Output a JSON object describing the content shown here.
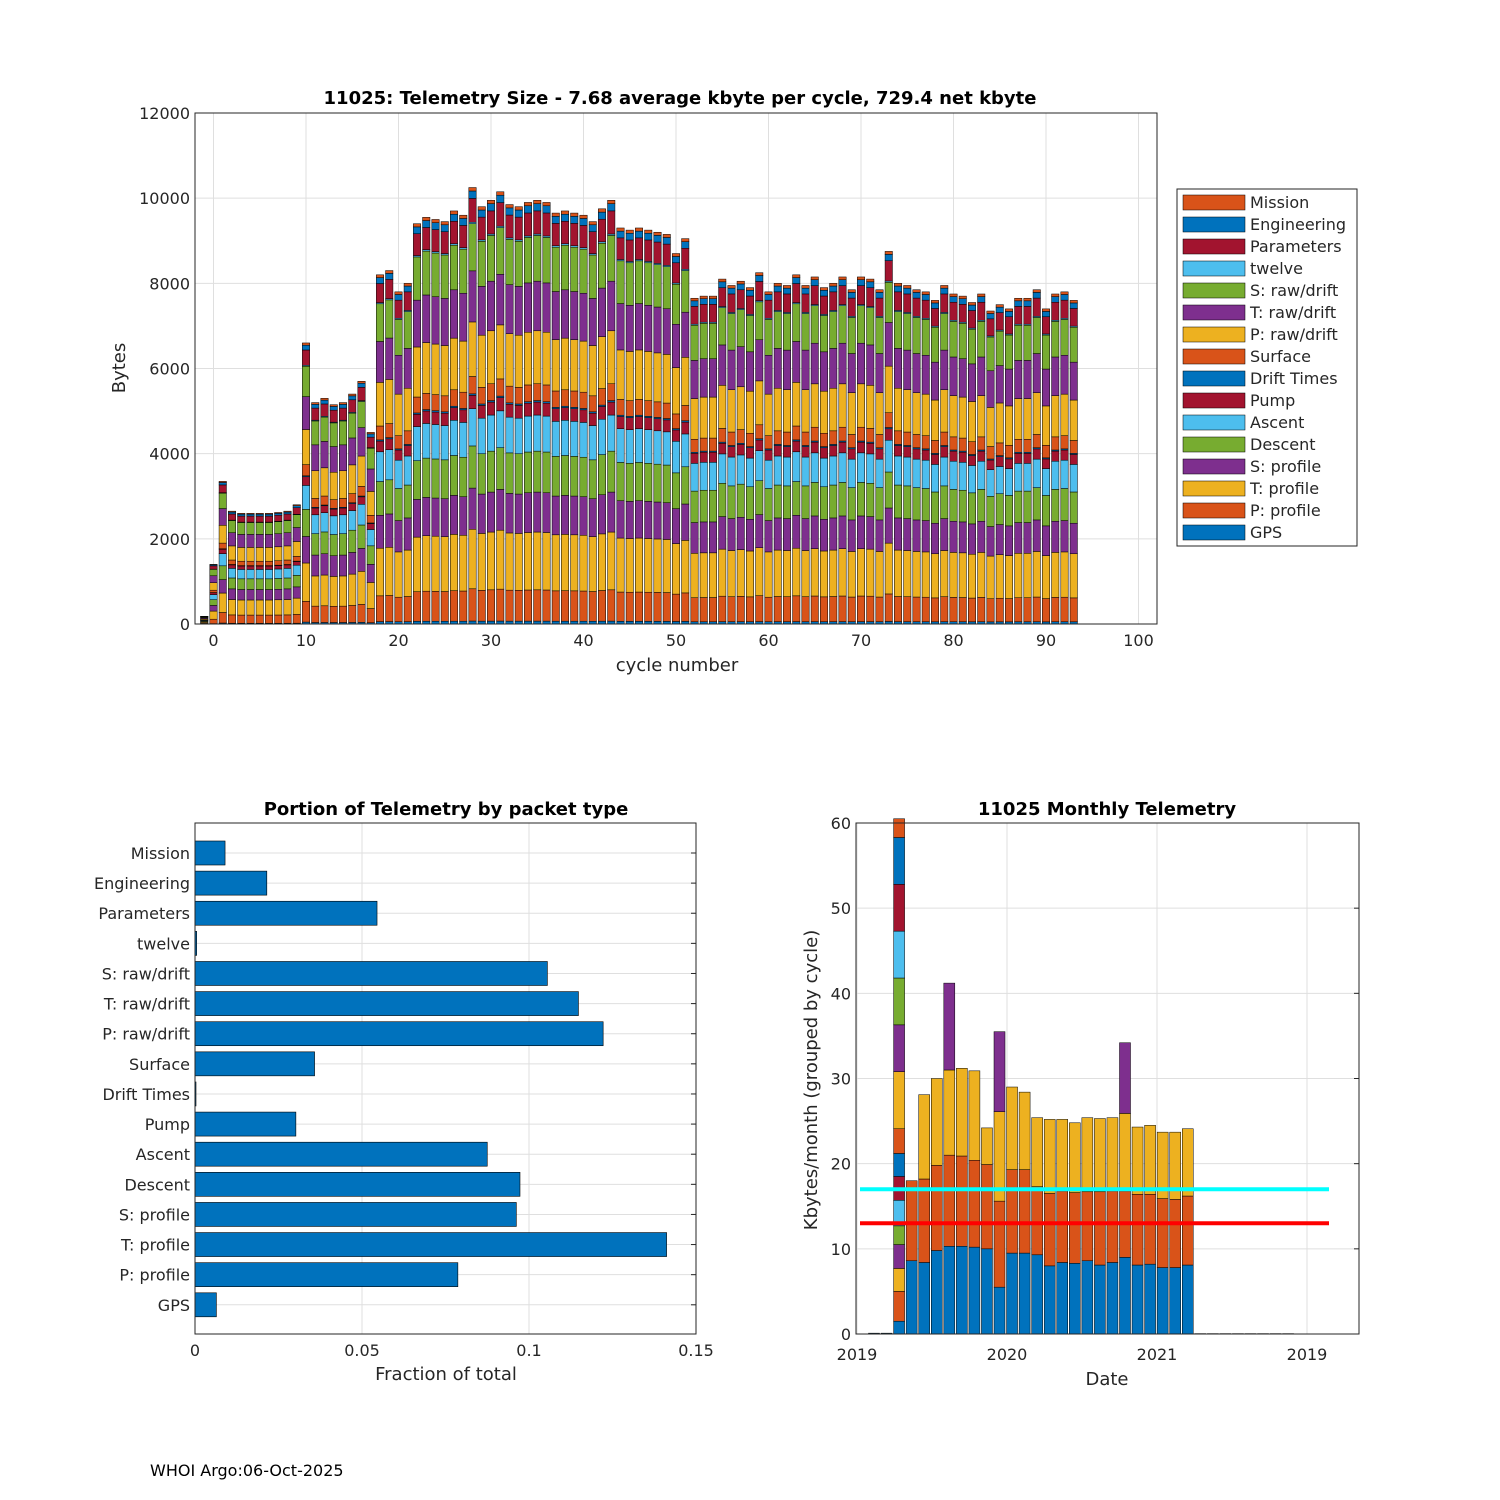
{
  "footer": "WHOI Argo:06-Oct-2025",
  "colors": {
    "GPS": "#0072BD",
    "P: profile": "#D95319",
    "T: profile": "#EDB120",
    "S: profile": "#7E2F8E",
    "Descent": "#77AC30",
    "Ascent": "#4DBEEE",
    "Pump": "#A2142F",
    "Drift Times": "#0072BD",
    "Surface": "#D95319",
    "P: raw/drift": "#EDB120",
    "T: raw/drift": "#7E2F8E",
    "S: raw/drift": "#77AC30",
    "twelve": "#4DBEEE",
    "Parameters": "#A2142F",
    "Engineering": "#0072BD",
    "Mission": "#D95319",
    "cyan_line": "#00FFFF",
    "red_line": "#FF0000",
    "grid": "#DFDFDF"
  },
  "chart_data": [
    {
      "type": "bar",
      "stacked": true,
      "title": "11025: Telemetry Size - 7.68 average kbyte per cycle,  729.4 net kbyte",
      "xlabel": "cycle number",
      "ylabel": "Bytes",
      "xlim": [
        -2,
        102
      ],
      "ylim": [
        0,
        12000
      ],
      "xticks": [
        0,
        10,
        20,
        30,
        40,
        50,
        60,
        70,
        80,
        90,
        100
      ],
      "yticks": [
        0,
        2000,
        4000,
        6000,
        8000,
        10000,
        12000
      ],
      "grid": true,
      "legend_position": "right",
      "legend": [
        "Mission",
        "Engineering",
        "Parameters",
        "twelve",
        "S: raw/drift",
        "T: raw/drift",
        "P: raw/drift",
        "Surface",
        "Drift Times",
        "Pump",
        "Ascent",
        "Descent",
        "S: profile",
        "T: profile",
        "P: profile",
        "GPS"
      ],
      "stack_order": [
        "GPS",
        "P: profile",
        "T: profile",
        "S: profile",
        "Descent",
        "Ascent",
        "Pump",
        "Drift Times",
        "Surface",
        "P: raw/drift",
        "T: raw/drift",
        "S: raw/drift",
        "twelve",
        "Parameters",
        "Engineering",
        "Mission"
      ],
      "cycles": [
        -1,
        0,
        1,
        2,
        3,
        4,
        5,
        6,
        7,
        8,
        9,
        10,
        11,
        12,
        13,
        14,
        15,
        16,
        17,
        18,
        19,
        20,
        21,
        22,
        23,
        24,
        25,
        26,
        27,
        28,
        29,
        30,
        31,
        32,
        33,
        34,
        35,
        36,
        37,
        38,
        39,
        40,
        41,
        42,
        43,
        44,
        45,
        46,
        47,
        48,
        49,
        50,
        51,
        52,
        53,
        54,
        55,
        56,
        57,
        58,
        59,
        60,
        61,
        62,
        63,
        64,
        65,
        66,
        67,
        68,
        69,
        70,
        71,
        72,
        73,
        74,
        75,
        76,
        77,
        78,
        79,
        80,
        81,
        82,
        83,
        84,
        85,
        86,
        87,
        88,
        89,
        90,
        91,
        92,
        93
      ],
      "totals": [
        180,
        1400,
        3350,
        2650,
        2600,
        2600,
        2600,
        2600,
        2620,
        2650,
        2800,
        6600,
        5200,
        5300,
        5150,
        5200,
        5400,
        5700,
        4500,
        8200,
        8300,
        7800,
        8000,
        9400,
        9550,
        9500,
        9450,
        9700,
        9600,
        10250,
        9800,
        9950,
        10150,
        9850,
        9800,
        9900,
        9950,
        9900,
        9650,
        9700,
        9650,
        9600,
        9450,
        9750,
        9950,
        9300,
        9250,
        9300,
        9250,
        9200,
        9150,
        8700,
        9050,
        7650,
        7700,
        7700,
        8100,
        7950,
        8050,
        7900,
        8250,
        7800,
        8000,
        7950,
        8200,
        7950,
        8150,
        7900,
        8000,
        8150,
        7850,
        8150,
        8100,
        7850,
        8750,
        8000,
        7950,
        7850,
        7800,
        7600,
        7950,
        7750,
        7700,
        7550,
        7750,
        7350,
        7500,
        7400,
        7650,
        7650,
        7850,
        7400,
        7750,
        7800,
        7600
      ],
      "segments_typical": {
        "GPS": 60,
        "P: profile": 650,
        "T: profile": 1200,
        "S: profile": 830,
        "Descent": 850,
        "Ascent": 750,
        "Pump": 270,
        "Drift Times": 30,
        "Surface": 350,
        "P: raw/drift": 1100,
        "T: raw/drift": 1030,
        "S: raw/drift": 950,
        "twelve": 30,
        "Parameters": 480,
        "Engineering": 150,
        "Mission": 70
      }
    },
    {
      "type": "bar",
      "orientation": "horizontal",
      "title": "Portion of Telemetry by packet type",
      "xlabel": "Fraction of total",
      "ylabel": "",
      "xlim": [
        0,
        0.15
      ],
      "xticks": [
        "0",
        "0.05",
        "0.1",
        "0.15"
      ],
      "grid": true,
      "categories": [
        "Mission",
        "Engineering",
        "Parameters",
        "twelve",
        "S: raw/drift",
        "T: raw/drift",
        "P: raw/drift",
        "Surface",
        "Drift Times",
        "Pump",
        "Ascent",
        "Descent",
        "S: profile",
        "T: profile",
        "P: profile",
        "GPS"
      ],
      "values": [
        0.009,
        0.0215,
        0.0545,
        0.0005,
        0.1055,
        0.1148,
        0.1222,
        0.0358,
        0.0003,
        0.0302,
        0.0875,
        0.0973,
        0.0962,
        0.1412,
        0.0787,
        0.0064
      ]
    },
    {
      "type": "bar",
      "stacked": true,
      "title": "11025 Monthly Telemetry",
      "xlabel": "Date",
      "ylabel": "Kbytes/month (grouped by cycle)",
      "ylim": [
        0,
        60
      ],
      "yticks": [
        0,
        10,
        20,
        30,
        40,
        50,
        60
      ],
      "xtick_labels": [
        "2019",
        "2020",
        "2021",
        "2019"
      ],
      "grid": true,
      "reference_lines": [
        {
          "value": 17,
          "color": "cyan"
        },
        {
          "value": 13,
          "color": "red"
        }
      ],
      "months": [
        {
          "segments": [
            0.1
          ]
        },
        {
          "segments": [
            0.1
          ]
        },
        {
          "segments": [
            1.5,
            3.5,
            2.7,
            2.8,
            2.2,
            3.0,
            2.8,
            2.7,
            2.9,
            6.7,
            5.5,
            5.5,
            5.5,
            5.5,
            5.5,
            2.2
          ]
        },
        {
          "segments": [
            8.6,
            9.4,
            0.0,
            0.0
          ]
        },
        {
          "segments": [
            8.4,
            9.8,
            9.9
          ]
        },
        {
          "segments": [
            9.8,
            10.0,
            10.2
          ]
        },
        {
          "segments": [
            10.3,
            10.7,
            10.0,
            10.2
          ]
        },
        {
          "segments": [
            10.3,
            10.6,
            10.3
          ]
        },
        {
          "segments": [
            10.2,
            10.2,
            10.5
          ]
        },
        {
          "segments": [
            10.0,
            9.9,
            4.3
          ]
        },
        {
          "segments": [
            5.5,
            10.1,
            10.5,
            9.4
          ]
        },
        {
          "segments": [
            9.5,
            9.8,
            9.7
          ]
        },
        {
          "segments": [
            9.5,
            9.8,
            9.1
          ]
        },
        {
          "segments": [
            9.3,
            8.0,
            8.1
          ]
        },
        {
          "segments": [
            8.0,
            8.5,
            8.7
          ]
        },
        {
          "segments": [
            8.4,
            8.4,
            8.4
          ]
        },
        {
          "segments": [
            8.3,
            8.3,
            8.2
          ]
        },
        {
          "segments": [
            8.6,
            8.1,
            8.7
          ]
        },
        {
          "segments": [
            8.1,
            8.6,
            8.6
          ]
        },
        {
          "segments": [
            8.4,
            8.4,
            8.6
          ]
        },
        {
          "segments": [
            9.0,
            7.8,
            9.1,
            8.3
          ]
        },
        {
          "segments": [
            8.1,
            8.3,
            7.9
          ]
        },
        {
          "segments": [
            8.2,
            8.2,
            8.1
          ]
        },
        {
          "segments": [
            7.8,
            8.1,
            7.8
          ]
        },
        {
          "segments": [
            7.8,
            8.0,
            7.9
          ]
        },
        {
          "segments": [
            8.1,
            8.1,
            7.9
          ]
        },
        {
          "segments": [
            0.05
          ]
        },
        {
          "segments": [
            0.05
          ]
        },
        {
          "segments": [
            0.05
          ]
        },
        {
          "segments": [
            0.05
          ]
        },
        {
          "segments": [
            0.05
          ]
        },
        {
          "segments": [
            0.05
          ]
        },
        {
          "segments": [
            0.05
          ]
        },
        {
          "segments": [
            0.05
          ]
        }
      ]
    }
  ]
}
